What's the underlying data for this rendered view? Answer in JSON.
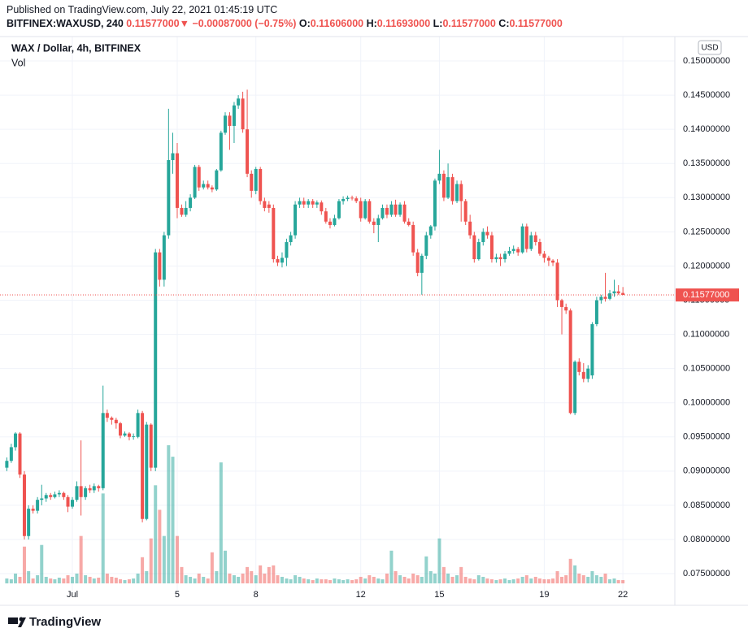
{
  "header": {
    "published": "Published on TradingView.com, July 22, 2021 01:45:19 UTC",
    "symbol": "BITFINEX:WAXUSD, 240",
    "last": "0.11577000",
    "arrow": "▼",
    "change": "−0.00087000 (−0.75%)",
    "o_label": "O:",
    "o": "0.11606000",
    "h_label": "H:",
    "h": "0.11693000",
    "l_label": "L:",
    "l": "0.11577000",
    "c_label": "C:",
    "c": "0.11577000"
  },
  "legend": {
    "title": "WAX / Dollar, 4h, BITFINEX",
    "vol": "Vol"
  },
  "currency": "USD",
  "footer": "TradingView",
  "chart_data": {
    "type": "candlestick",
    "up_color": "#26a69a",
    "down_color": "#ef5350",
    "grid": true,
    "xlim": [
      -1.76,
      23.98
    ],
    "xticks": [
      {
        "value": 1,
        "label": "Jul"
      },
      5,
      8,
      12,
      15,
      19,
      22
    ],
    "ylim": [
      0.07334,
      0.15357
    ],
    "yticks": [
      {
        "value": 0.075,
        "label": "0.07500000"
      },
      {
        "value": 0.08,
        "label": "0.08000000"
      },
      {
        "value": 0.085,
        "label": "0.08500000"
      },
      {
        "value": 0.09,
        "label": "0.09000000"
      },
      {
        "value": 0.095,
        "label": "0.09500000"
      },
      {
        "value": 0.1,
        "label": "0.10000000"
      },
      {
        "value": 0.105,
        "label": "0.10500000"
      },
      {
        "value": 0.11,
        "label": "0.11000000"
      },
      {
        "value": 0.115,
        "label": "0.11500000"
      },
      {
        "value": 0.12,
        "label": "0.12000000"
      },
      {
        "value": 0.125,
        "label": "0.12500000"
      },
      {
        "value": 0.13,
        "label": "0.13000000"
      },
      {
        "value": 0.135,
        "label": "0.13500000"
      },
      {
        "value": 0.14,
        "label": "0.14000000"
      },
      {
        "value": 0.145,
        "label": "0.14500000"
      },
      {
        "value": 0.15,
        "label": "0.15000000"
      }
    ],
    "last_price": {
      "value": 0.11577,
      "label": "0.11577000"
    },
    "x": [
      -1.5,
      -1.33,
      -1.17,
      -1,
      -0.83,
      -0.67,
      -0.5,
      -0.33,
      -0.17,
      0,
      0.17,
      0.33,
      0.5,
      0.67,
      0.83,
      1,
      1.17,
      1.33,
      1.5,
      1.67,
      1.83,
      2,
      2.17,
      2.33,
      2.5,
      2.67,
      2.83,
      3,
      3.17,
      3.33,
      3.5,
      3.67,
      3.83,
      4,
      4.17,
      4.33,
      4.5,
      4.67,
      4.83,
      5,
      5.17,
      5.33,
      5.5,
      5.67,
      5.83,
      6,
      6.17,
      6.33,
      6.5,
      6.67,
      6.83,
      7,
      7.17,
      7.33,
      7.5,
      7.67,
      7.83,
      8,
      8.17,
      8.33,
      8.5,
      8.67,
      8.83,
      9,
      9.17,
      9.33,
      9.5,
      9.67,
      9.83,
      10,
      10.17,
      10.33,
      10.5,
      10.67,
      10.83,
      11,
      11.17,
      11.33,
      11.5,
      11.67,
      11.83,
      12,
      12.17,
      12.33,
      12.5,
      12.67,
      12.83,
      13,
      13.17,
      13.33,
      13.5,
      13.67,
      13.83,
      14,
      14.17,
      14.33,
      14.5,
      14.67,
      14.83,
      15,
      15.17,
      15.33,
      15.5,
      15.67,
      15.83,
      16,
      16.17,
      16.33,
      16.5,
      16.67,
      16.83,
      17,
      17.17,
      17.33,
      17.5,
      17.67,
      17.83,
      18,
      18.17,
      18.33,
      18.5,
      18.67,
      18.83,
      19,
      19.17,
      19.33,
      19.5,
      19.67,
      19.83,
      20,
      20.17,
      20.33,
      20.5,
      20.67,
      20.83,
      21,
      21.17,
      21.33,
      21.5,
      21.67,
      21.83,
      22
    ],
    "open": [
      0.0905,
      0.0915,
      0.0935,
      0.0955,
      0.0895,
      0.0805,
      0.0845,
      0.0842,
      0.0858,
      0.086,
      0.0865,
      0.0862,
      0.0866,
      0.0868,
      0.0862,
      0.0848,
      0.0858,
      0.0878,
      0.0862,
      0.0875,
      0.0872,
      0.0878,
      0.0875,
      0.0985,
      0.0978,
      0.0975,
      0.097,
      0.0952,
      0.0955,
      0.095,
      0.095,
      0.0985,
      0.083,
      0.0968,
      0.0905,
      0.122,
      0.118,
      0.1245,
      0.1355,
      0.1365,
      0.1285,
      0.1275,
      0.1285,
      0.13,
      0.1345,
      0.1315,
      0.132,
      0.1315,
      0.1312,
      0.134,
      0.1395,
      0.142,
      0.1405,
      0.1435,
      0.1445,
      0.14,
      0.1335,
      0.131,
      0.1342,
      0.1295,
      0.129,
      0.1285,
      0.121,
      0.1205,
      0.1212,
      0.1235,
      0.1245,
      0.129,
      0.1295,
      0.129,
      0.1295,
      0.129,
      0.1293,
      0.128,
      0.1265,
      0.126,
      0.127,
      0.1295,
      0.1298,
      0.13,
      0.1299,
      0.1295,
      0.127,
      0.1295,
      0.1265,
      0.126,
      0.127,
      0.1285,
      0.1275,
      0.129,
      0.1275,
      0.129,
      0.1265,
      0.126,
      0.122,
      0.119,
      0.1215,
      0.1245,
      0.1258,
      0.1325,
      0.1335,
      0.13,
      0.133,
      0.1295,
      0.132,
      0.1295,
      0.1265,
      0.1245,
      0.121,
      0.1235,
      0.125,
      0.1245,
      0.121,
      0.1213,
      0.121,
      0.1218,
      0.1222,
      0.1225,
      0.122,
      0.1258,
      0.1225,
      0.1245,
      0.1235,
      0.1218,
      0.1212,
      0.1208,
      0.1205,
      0.115,
      0.114,
      0.1135,
      0.0985,
      0.106,
      0.1045,
      0.1035,
      0.104,
      0.1115,
      0.115,
      0.1155,
      0.1152,
      0.116,
      0.1163,
      0.11606
    ],
    "high": [
      0.092,
      0.094,
      0.0957,
      0.0957,
      0.09,
      0.085,
      0.085,
      0.0862,
      0.088,
      0.0868,
      0.0868,
      0.087,
      0.0872,
      0.087,
      0.0865,
      0.0862,
      0.0885,
      0.0945,
      0.0878,
      0.088,
      0.0882,
      0.088,
      0.1025,
      0.099,
      0.098,
      0.0978,
      0.0972,
      0.0958,
      0.0957,
      0.0955,
      0.099,
      0.0988,
      0.0972,
      0.097,
      0.1225,
      0.1225,
      0.125,
      0.143,
      0.1395,
      0.138,
      0.129,
      0.1295,
      0.1305,
      0.1348,
      0.1348,
      0.1325,
      0.1325,
      0.1318,
      0.1342,
      0.1398,
      0.1425,
      0.1425,
      0.144,
      0.145,
      0.1455,
      0.1458,
      0.134,
      0.1345,
      0.1345,
      0.13,
      0.1295,
      0.129,
      0.1215,
      0.122,
      0.124,
      0.125,
      0.1295,
      0.13,
      0.13,
      0.1298,
      0.1298,
      0.1296,
      0.1296,
      0.1285,
      0.127,
      0.1275,
      0.1298,
      0.1302,
      0.1303,
      0.1303,
      0.1302,
      0.13,
      0.1298,
      0.1298,
      0.127,
      0.1275,
      0.129,
      0.129,
      0.1295,
      0.1297,
      0.1293,
      0.1295,
      0.127,
      0.1265,
      0.1225,
      0.1218,
      0.125,
      0.126,
      0.1328,
      0.137,
      0.134,
      0.135,
      0.1335,
      0.1325,
      0.1325,
      0.1298,
      0.1275,
      0.125,
      0.124,
      0.1255,
      0.1258,
      0.125,
      0.1218,
      0.1218,
      0.1222,
      0.1228,
      0.123,
      0.1228,
      0.1262,
      0.1262,
      0.125,
      0.125,
      0.124,
      0.1222,
      0.1215,
      0.121,
      0.121,
      0.1152,
      0.1145,
      0.1138,
      0.1062,
      0.1065,
      0.1058,
      0.1055,
      0.1118,
      0.1155,
      0.1158,
      0.119,
      0.1165,
      0.118,
      0.1172,
      0.11693
    ],
    "low": [
      0.09,
      0.0912,
      0.093,
      0.089,
      0.08,
      0.08,
      0.0838,
      0.0838,
      0.085,
      0.0855,
      0.0858,
      0.086,
      0.0862,
      0.0858,
      0.084,
      0.0845,
      0.0855,
      0.0835,
      0.0858,
      0.0868,
      0.0868,
      0.087,
      0.0872,
      0.0972,
      0.0968,
      0.0962,
      0.0948,
      0.095,
      0.0945,
      0.0946,
      0.0948,
      0.0825,
      0.0828,
      0.09,
      0.09,
      0.117,
      0.117,
      0.124,
      0.1335,
      0.127,
      0.1272,
      0.1272,
      0.128,
      0.1298,
      0.131,
      0.1312,
      0.1312,
      0.1308,
      0.131,
      0.1338,
      0.1392,
      0.137,
      0.138,
      0.143,
      0.1395,
      0.133,
      0.13,
      0.1305,
      0.129,
      0.128,
      0.1278,
      0.1205,
      0.12,
      0.1198,
      0.12,
      0.123,
      0.124,
      0.1285,
      0.1285,
      0.1285,
      0.1285,
      0.1285,
      0.1275,
      0.1262,
      0.1255,
      0.1258,
      0.1268,
      0.129,
      0.1295,
      0.1296,
      0.1292,
      0.1265,
      0.1268,
      0.1262,
      0.1248,
      0.1235,
      0.1268,
      0.127,
      0.1272,
      0.1272,
      0.1272,
      0.1262,
      0.1258,
      0.1215,
      0.1185,
      0.1158,
      0.121,
      0.124,
      0.1252,
      0.132,
      0.1295,
      0.1298,
      0.129,
      0.1292,
      0.1265,
      0.126,
      0.124,
      0.1205,
      0.1208,
      0.123,
      0.124,
      0.1205,
      0.1205,
      0.12,
      0.1205,
      0.1215,
      0.1218,
      0.1215,
      0.1218,
      0.122,
      0.1222,
      0.123,
      0.1215,
      0.1205,
      0.12,
      0.12,
      0.114,
      0.11,
      0.113,
      0.0983,
      0.0982,
      0.104,
      0.103,
      0.103,
      0.1035,
      0.1112,
      0.1145,
      0.1148,
      0.115,
      0.1155,
      0.1158,
      0.11577
    ],
    "close": [
      0.0915,
      0.0935,
      0.0955,
      0.0895,
      0.0805,
      0.0845,
      0.0842,
      0.0858,
      0.086,
      0.0865,
      0.0862,
      0.0866,
      0.0868,
      0.0862,
      0.0848,
      0.0858,
      0.0878,
      0.0862,
      0.0875,
      0.0872,
      0.0878,
      0.0875,
      0.0985,
      0.0978,
      0.0975,
      0.097,
      0.0952,
      0.0955,
      0.095,
      0.0951,
      0.0985,
      0.083,
      0.0968,
      0.0905,
      0.122,
      0.118,
      0.1245,
      0.1355,
      0.1365,
      0.1285,
      0.1275,
      0.1285,
      0.13,
      0.1345,
      0.1315,
      0.132,
      0.1315,
      0.1312,
      0.134,
      0.1395,
      0.142,
      0.1405,
      0.1435,
      0.1445,
      0.14,
      0.1335,
      0.131,
      0.1342,
      0.1295,
      0.1285,
      0.1285,
      0.121,
      0.1205,
      0.1212,
      0.1235,
      0.1245,
      0.129,
      0.1295,
      0.129,
      0.1295,
      0.129,
      0.1293,
      0.128,
      0.1265,
      0.126,
      0.127,
      0.1295,
      0.1298,
      0.13,
      0.1299,
      0.1295,
      0.127,
      0.1295,
      0.1265,
      0.126,
      0.127,
      0.1285,
      0.1275,
      0.129,
      0.1275,
      0.129,
      0.1265,
      0.126,
      0.122,
      0.119,
      0.1215,
      0.1245,
      0.1258,
      0.1325,
      0.1335,
      0.13,
      0.133,
      0.1295,
      0.132,
      0.1295,
      0.1265,
      0.1245,
      0.121,
      0.1235,
      0.125,
      0.1245,
      0.121,
      0.1213,
      0.121,
      0.1218,
      0.1222,
      0.1225,
      0.122,
      0.1258,
      0.1225,
      0.1245,
      0.1235,
      0.1218,
      0.1212,
      0.1208,
      0.1205,
      0.115,
      0.114,
      0.1135,
      0.0985,
      0.106,
      0.1045,
      0.1035,
      0.105,
      0.1115,
      0.115,
      0.1155,
      0.1152,
      0.116,
      0.1163,
      0.116,
      0.11577
    ],
    "volume": [
      6,
      5,
      12,
      8,
      45,
      15,
      6,
      10,
      47,
      8,
      6,
      5,
      7,
      6,
      10,
      8,
      12,
      58,
      10,
      8,
      6,
      7,
      110,
      12,
      8,
      7,
      5,
      4,
      5,
      6,
      12,
      32,
      15,
      55,
      120,
      90,
      58,
      169,
      155,
      58,
      20,
      10,
      8,
      6,
      12,
      8,
      6,
      38,
      15,
      148,
      40,
      12,
      10,
      8,
      12,
      20,
      15,
      10,
      22,
      12,
      20,
      22,
      10,
      8,
      6,
      5,
      10,
      8,
      6,
      5,
      4,
      6,
      5,
      5,
      4,
      6,
      5,
      4,
      5,
      4,
      5,
      8,
      6,
      10,
      8,
      6,
      5,
      12,
      40,
      15,
      10,
      8,
      6,
      12,
      10,
      8,
      33,
      15,
      12,
      55,
      20,
      12,
      8,
      10,
      20,
      8,
      6,
      5,
      10,
      8,
      6,
      5,
      4,
      5,
      6,
      4,
      5,
      6,
      8,
      10,
      6,
      8,
      6,
      5,
      5,
      6,
      15,
      8,
      10,
      30,
      22,
      12,
      10,
      8,
      15,
      10,
      8,
      12,
      5,
      6,
      4,
      4
    ]
  }
}
